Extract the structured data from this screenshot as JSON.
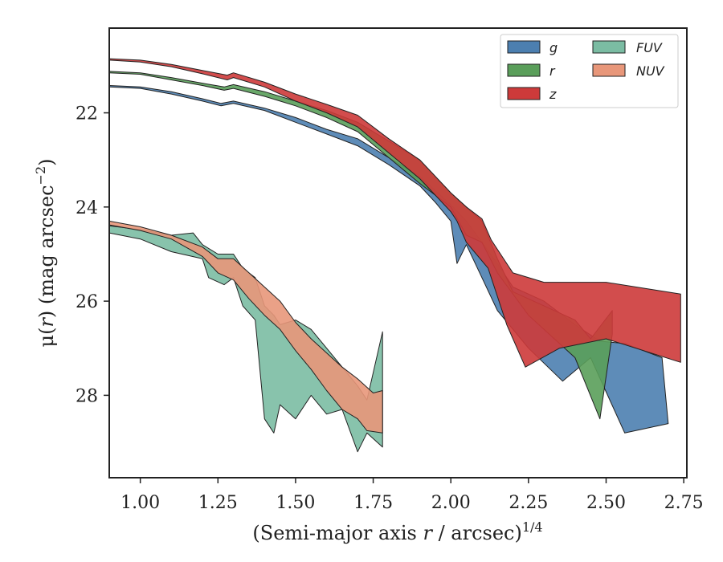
{
  "chart_data": {
    "type": "area",
    "xlabel": "(Semi-major axis r / arcsec)^1/4",
    "xlabel_parts": {
      "prefix": "(Semi-major axis ",
      "var": "r",
      "suffix": " / arcsec)",
      "sup": "1/4"
    },
    "ylabel": "μ(r) (mag arcsec^-2)",
    "ylabel_parts": {
      "prefix": "μ(",
      "var": "r",
      "suffix": ") (mag arcsec",
      "sup": "−2",
      "close": ")"
    },
    "xlim": [
      0.9,
      2.76
    ],
    "ylim": [
      29.75,
      20.2
    ],
    "y_inverted": true,
    "x_ticks": [
      1.0,
      1.25,
      1.5,
      1.75,
      2.0,
      2.25,
      2.5,
      2.75
    ],
    "x_tick_labels": [
      "1.00",
      "1.25",
      "1.50",
      "1.75",
      "2.00",
      "2.25",
      "2.50",
      "2.75"
    ],
    "y_ticks": [
      22,
      24,
      26,
      28
    ],
    "y_tick_labels": [
      "22",
      "24",
      "26",
      "28"
    ],
    "grid": false,
    "legend": {
      "placement": "top-right",
      "columns": 2,
      "entries": [
        "g",
        "r",
        "z",
        "FUV",
        "NUV"
      ]
    },
    "series": [
      {
        "name": "g",
        "color": "#4c7fb0",
        "upper": [
          [
            0.9,
            21.42
          ],
          [
            1.0,
            21.45
          ],
          [
            1.1,
            21.55
          ],
          [
            1.2,
            21.7
          ],
          [
            1.26,
            21.8
          ],
          [
            1.3,
            21.75
          ],
          [
            1.4,
            21.9
          ],
          [
            1.5,
            22.1
          ],
          [
            1.6,
            22.35
          ],
          [
            1.7,
            22.55
          ],
          [
            1.8,
            22.95
          ],
          [
            1.9,
            23.35
          ],
          [
            2.0,
            23.95
          ],
          [
            2.05,
            24.3
          ],
          [
            2.1,
            24.75
          ],
          [
            2.15,
            25.2
          ],
          [
            2.2,
            25.7
          ],
          [
            2.3,
            26.0
          ],
          [
            2.4,
            26.5
          ],
          [
            2.48,
            26.85
          ],
          [
            2.56,
            26.9
          ],
          [
            2.68,
            27.2
          ]
        ],
        "lower": [
          [
            0.9,
            21.45
          ],
          [
            1.0,
            21.48
          ],
          [
            1.1,
            21.6
          ],
          [
            1.2,
            21.75
          ],
          [
            1.26,
            21.85
          ],
          [
            1.3,
            21.8
          ],
          [
            1.4,
            21.95
          ],
          [
            1.5,
            22.2
          ],
          [
            1.6,
            22.45
          ],
          [
            1.7,
            22.7
          ],
          [
            1.8,
            23.1
          ],
          [
            1.9,
            23.55
          ],
          [
            1.95,
            23.9
          ],
          [
            2.0,
            24.3
          ],
          [
            2.02,
            25.2
          ],
          [
            2.05,
            24.8
          ],
          [
            2.1,
            25.5
          ],
          [
            2.15,
            26.2
          ],
          [
            2.25,
            27.0
          ],
          [
            2.36,
            27.7
          ],
          [
            2.45,
            27.2
          ],
          [
            2.56,
            28.8
          ],
          [
            2.7,
            28.6
          ]
        ]
      },
      {
        "name": "r",
        "color": "#5a9e5a",
        "upper": [
          [
            0.9,
            21.12
          ],
          [
            1.0,
            21.15
          ],
          [
            1.1,
            21.25
          ],
          [
            1.2,
            21.37
          ],
          [
            1.27,
            21.45
          ],
          [
            1.3,
            21.4
          ],
          [
            1.4,
            21.55
          ],
          [
            1.5,
            21.75
          ],
          [
            1.6,
            21.95
          ],
          [
            1.7,
            22.2
          ],
          [
            1.8,
            22.6
          ],
          [
            1.9,
            23.0
          ],
          [
            2.0,
            23.7
          ],
          [
            2.05,
            24.0
          ],
          [
            2.1,
            24.3
          ],
          [
            2.15,
            25.1
          ],
          [
            2.2,
            25.8
          ],
          [
            2.3,
            26.1
          ],
          [
            2.4,
            26.4
          ],
          [
            2.45,
            26.8
          ],
          [
            2.52,
            26.2
          ]
        ],
        "lower": [
          [
            0.9,
            21.15
          ],
          [
            1.0,
            21.18
          ],
          [
            1.1,
            21.3
          ],
          [
            1.2,
            21.42
          ],
          [
            1.27,
            21.52
          ],
          [
            1.3,
            21.48
          ],
          [
            1.4,
            21.65
          ],
          [
            1.5,
            21.85
          ],
          [
            1.6,
            22.1
          ],
          [
            1.7,
            22.4
          ],
          [
            1.8,
            22.95
          ],
          [
            1.9,
            23.5
          ],
          [
            2.0,
            24.0
          ],
          [
            2.05,
            24.6
          ],
          [
            2.1,
            24.75
          ],
          [
            2.15,
            25.4
          ],
          [
            2.25,
            26.3
          ],
          [
            2.35,
            26.9
          ],
          [
            2.4,
            27.2
          ],
          [
            2.48,
            28.5
          ],
          [
            2.52,
            26.7
          ]
        ]
      },
      {
        "name": "z",
        "color": "#cd3a3a",
        "upper": [
          [
            0.9,
            20.85
          ],
          [
            1.0,
            20.88
          ],
          [
            1.1,
            20.97
          ],
          [
            1.2,
            21.1
          ],
          [
            1.28,
            21.2
          ],
          [
            1.3,
            21.15
          ],
          [
            1.4,
            21.35
          ],
          [
            1.5,
            21.6
          ],
          [
            1.6,
            21.82
          ],
          [
            1.7,
            22.05
          ],
          [
            1.8,
            22.55
          ],
          [
            1.9,
            23.0
          ],
          [
            2.0,
            23.7
          ],
          [
            2.05,
            24.0
          ],
          [
            2.1,
            24.25
          ],
          [
            2.13,
            24.7
          ],
          [
            2.2,
            25.4
          ],
          [
            2.3,
            25.6
          ],
          [
            2.5,
            25.6
          ],
          [
            2.74,
            25.85
          ]
        ],
        "lower": [
          [
            0.9,
            20.88
          ],
          [
            1.0,
            20.92
          ],
          [
            1.1,
            21.02
          ],
          [
            1.2,
            21.17
          ],
          [
            1.28,
            21.3
          ],
          [
            1.3,
            21.25
          ],
          [
            1.4,
            21.45
          ],
          [
            1.5,
            21.75
          ],
          [
            1.6,
            22.0
          ],
          [
            1.7,
            22.3
          ],
          [
            1.8,
            22.85
          ],
          [
            1.9,
            23.4
          ],
          [
            2.0,
            24.1
          ],
          [
            2.02,
            24.3
          ],
          [
            2.05,
            24.75
          ],
          [
            2.12,
            25.3
          ],
          [
            2.18,
            26.5
          ],
          [
            2.24,
            27.4
          ],
          [
            2.35,
            27.0
          ],
          [
            2.5,
            26.8
          ],
          [
            2.74,
            27.3
          ]
        ]
      },
      {
        "name": "FUV",
        "color": "#7bbca3",
        "upper": [
          [
            0.9,
            24.4
          ],
          [
            1.0,
            24.48
          ],
          [
            1.1,
            24.6
          ],
          [
            1.17,
            24.55
          ],
          [
            1.2,
            24.8
          ],
          [
            1.25,
            25.0
          ],
          [
            1.3,
            25.0
          ],
          [
            1.33,
            25.3
          ],
          [
            1.37,
            25.5
          ],
          [
            1.4,
            26.1
          ],
          [
            1.43,
            26.3
          ],
          [
            1.45,
            26.5
          ],
          [
            1.5,
            26.4
          ],
          [
            1.55,
            26.6
          ],
          [
            1.6,
            27.0
          ],
          [
            1.65,
            27.4
          ],
          [
            1.7,
            27.8
          ],
          [
            1.73,
            28.1
          ],
          [
            1.78,
            26.65
          ]
        ],
        "lower": [
          [
            0.9,
            24.55
          ],
          [
            1.0,
            24.68
          ],
          [
            1.1,
            24.95
          ],
          [
            1.2,
            25.1
          ],
          [
            1.22,
            25.5
          ],
          [
            1.27,
            25.65
          ],
          [
            1.3,
            25.5
          ],
          [
            1.33,
            26.1
          ],
          [
            1.37,
            26.4
          ],
          [
            1.4,
            28.5
          ],
          [
            1.43,
            28.8
          ],
          [
            1.45,
            28.2
          ],
          [
            1.5,
            28.5
          ],
          [
            1.55,
            28.0
          ],
          [
            1.6,
            28.4
          ],
          [
            1.65,
            28.3
          ],
          [
            1.7,
            29.2
          ],
          [
            1.73,
            28.8
          ],
          [
            1.78,
            29.1
          ]
        ]
      },
      {
        "name": "NUV",
        "color": "#e8977a",
        "upper": [
          [
            0.9,
            24.3
          ],
          [
            1.0,
            24.42
          ],
          [
            1.1,
            24.6
          ],
          [
            1.2,
            24.85
          ],
          [
            1.25,
            25.1
          ],
          [
            1.3,
            25.1
          ],
          [
            1.35,
            25.4
          ],
          [
            1.4,
            25.7
          ],
          [
            1.45,
            26.0
          ],
          [
            1.5,
            26.45
          ],
          [
            1.55,
            26.8
          ],
          [
            1.6,
            27.1
          ],
          [
            1.65,
            27.4
          ],
          [
            1.7,
            27.65
          ],
          [
            1.75,
            27.95
          ],
          [
            1.78,
            27.9
          ]
        ],
        "lower": [
          [
            0.9,
            24.38
          ],
          [
            1.0,
            24.5
          ],
          [
            1.1,
            24.68
          ],
          [
            1.2,
            25.05
          ],
          [
            1.25,
            25.4
          ],
          [
            1.3,
            25.55
          ],
          [
            1.35,
            25.95
          ],
          [
            1.4,
            26.3
          ],
          [
            1.45,
            26.6
          ],
          [
            1.5,
            27.05
          ],
          [
            1.55,
            27.45
          ],
          [
            1.6,
            27.9
          ],
          [
            1.65,
            28.3
          ],
          [
            1.7,
            28.5
          ],
          [
            1.73,
            28.75
          ],
          [
            1.78,
            28.8
          ]
        ]
      }
    ]
  }
}
